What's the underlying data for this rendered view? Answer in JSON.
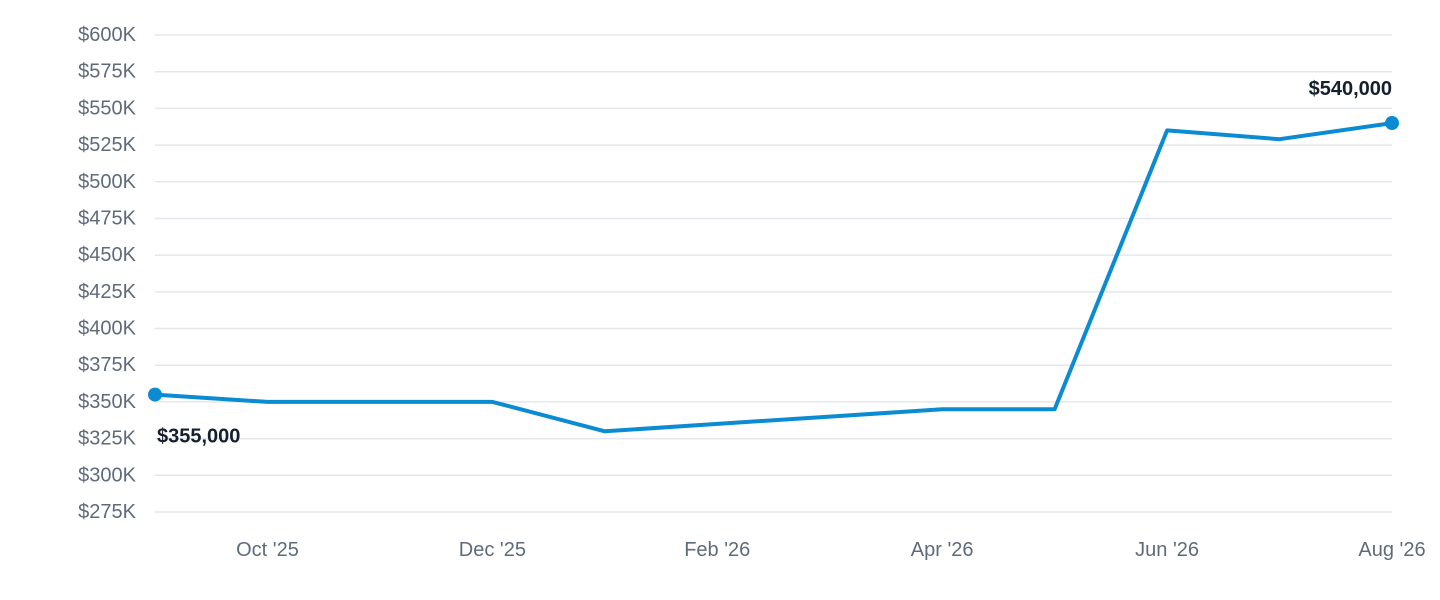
{
  "colors": {
    "line": "#0a8bd2",
    "grid": "#e3e7ec",
    "tick_text": "#5f6b7a",
    "label_text": "#14202e"
  },
  "chart_data": {
    "type": "line",
    "title": "",
    "xlabel": "",
    "ylabel": "",
    "ylim": [
      275000,
      600000
    ],
    "xlim": [
      "2025-09",
      "2026-08"
    ],
    "grid": true,
    "y_ticks": [
      {
        "value": 600000,
        "label": "$600K"
      },
      {
        "value": 575000,
        "label": "$575K"
      },
      {
        "value": 550000,
        "label": "$550K"
      },
      {
        "value": 525000,
        "label": "$525K"
      },
      {
        "value": 500000,
        "label": "$500K"
      },
      {
        "value": 475000,
        "label": "$475K"
      },
      {
        "value": 450000,
        "label": "$450K"
      },
      {
        "value": 425000,
        "label": "$425K"
      },
      {
        "value": 400000,
        "label": "$400K"
      },
      {
        "value": 375000,
        "label": "$375K"
      },
      {
        "value": 350000,
        "label": "$350K"
      },
      {
        "value": 325000,
        "label": "$325K"
      },
      {
        "value": 300000,
        "label": "$300K"
      },
      {
        "value": 275000,
        "label": "$275K"
      }
    ],
    "x_ticks": [
      {
        "value": "2025-10",
        "label": "Oct '25"
      },
      {
        "value": "2025-12",
        "label": "Dec '25"
      },
      {
        "value": "2026-02",
        "label": "Feb '26"
      },
      {
        "value": "2026-04",
        "label": "Apr '26"
      },
      {
        "value": "2026-06",
        "label": "Jun '26"
      },
      {
        "value": "2026-08",
        "label": "Aug '26"
      }
    ],
    "series": [
      {
        "x": [
          "2025-09",
          "2025-10",
          "2025-11",
          "2025-12",
          "2026-01",
          "2026-02",
          "2026-03",
          "2026-04",
          "2026-05",
          "2026-06",
          "2026-07",
          "2026-08"
        ],
        "values": [
          355000,
          350000,
          350000,
          350000,
          330000,
          335000,
          340000,
          345000,
          345000,
          535000,
          529000,
          540000
        ]
      }
    ],
    "annotations": [
      {
        "x": "2025-09",
        "value": 355000,
        "label": "$355,000",
        "position": "below"
      },
      {
        "x": "2026-08",
        "value": 540000,
        "label": "$540,000",
        "position": "above"
      }
    ]
  }
}
